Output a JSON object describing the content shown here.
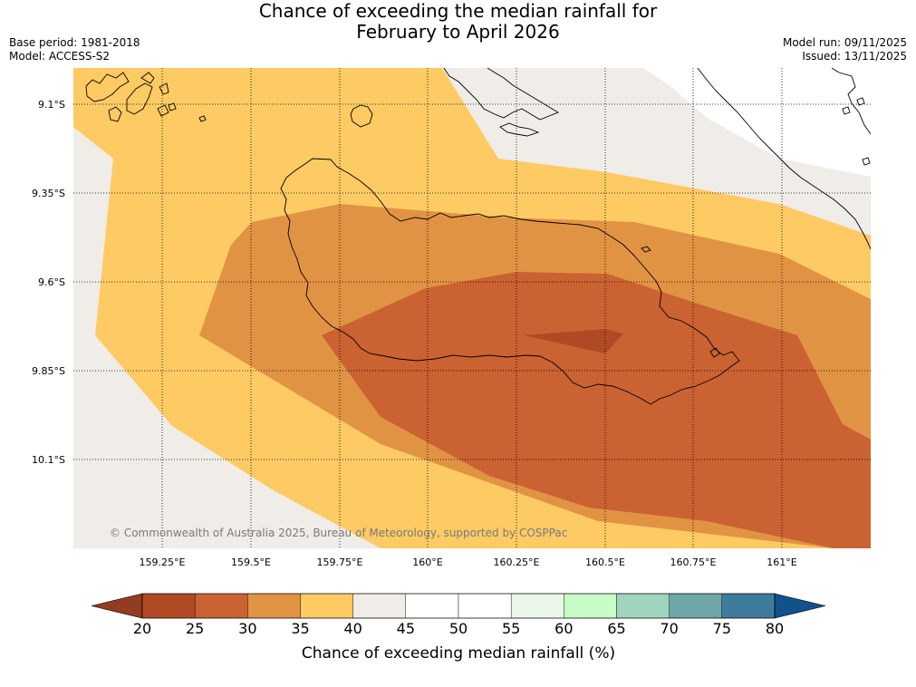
{
  "header": {
    "title_line1": "Chance of exceeding the median rainfall for",
    "title_line2": "February to April 2026",
    "base_period": "Base period: 1981-2018",
    "model": "Model: ACCESS-S2",
    "model_run": "Model run: 09/11/2025",
    "issued": "Issued: 13/11/2025"
  },
  "map": {
    "lat_labels": [
      "9.1°S",
      "9.35°S",
      "9.6°S",
      "9.85°S",
      "10.1°S"
    ],
    "lon_labels": [
      "159.25°E",
      "159.5°E",
      "159.75°E",
      "160°E",
      "160.25°E",
      "160.5°E",
      "160.75°E",
      "161°E"
    ],
    "copyright": "© Commonwealth of Australia 2025, Bureau of Meteorology, supported by COSPPac",
    "colors": {
      "band_20_25": "#b04a25",
      "band_25_30": "#cb6232",
      "band_30_35": "#e19344",
      "band_35_40": "#feca64",
      "band_40_45": "#f0ece7",
      "coast": "#000000"
    }
  },
  "colorbar": {
    "title": "Chance of exceeding median rainfall (%)",
    "ticks": [
      "20",
      "25",
      "30",
      "35",
      "40",
      "45",
      "50",
      "55",
      "60",
      "65",
      "70",
      "75",
      "80"
    ],
    "under_color": "#923c21",
    "over_color": "#11528a",
    "colors": [
      "#b04a25",
      "#cb6232",
      "#e19344",
      "#feca64",
      "#f0ece7",
      "#ffffff",
      "#ffffff",
      "#e9f6e9",
      "#c7fcc7",
      "#9fd5bf",
      "#6fa6a8",
      "#3f7b9d"
    ]
  }
}
